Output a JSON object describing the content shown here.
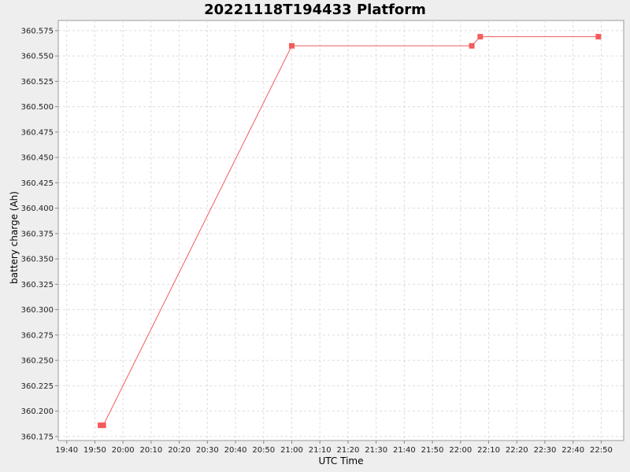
{
  "chart_data": {
    "type": "line",
    "title": "20221118T194433 Platform",
    "xlabel": "UTC Time",
    "ylabel": "battery charge (Ah)",
    "x_ticks": [
      "19:40",
      "19:50",
      "20:00",
      "20:10",
      "20:20",
      "20:30",
      "20:40",
      "20:50",
      "21:00",
      "21:10",
      "21:20",
      "21:30",
      "21:40",
      "21:50",
      "22:00",
      "22:10",
      "22:20",
      "22:30",
      "22:40",
      "22:50"
    ],
    "y_ticks": [
      "360.175",
      "360.200",
      "360.225",
      "360.250",
      "360.275",
      "360.300",
      "360.325",
      "360.350",
      "360.375",
      "360.400",
      "360.425",
      "360.450",
      "360.475",
      "360.500",
      "360.525",
      "360.550",
      "360.575"
    ],
    "xlim": [
      "19:37",
      "22:58"
    ],
    "ylim": [
      360.171,
      360.585
    ],
    "grid": true,
    "series": [
      {
        "color": "#f25c5c",
        "points": [
          {
            "x": "19:52",
            "y": 360.186
          },
          {
            "x": "19:53",
            "y": 360.186
          },
          {
            "x": "21:00",
            "y": 360.56
          },
          {
            "x": "22:04",
            "y": 360.56
          },
          {
            "x": "22:07",
            "y": 360.569
          },
          {
            "x": "22:49",
            "y": 360.569
          }
        ]
      }
    ]
  }
}
